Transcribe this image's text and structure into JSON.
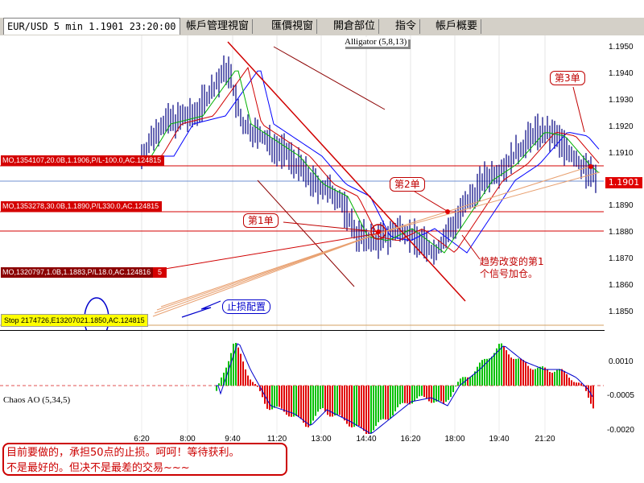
{
  "tabs": [
    {
      "label": "EUR/USD 5 min 1.1901 23:20:00",
      "active": true
    },
    {
      "label": "帳戶管理視窗"
    },
    {
      "label": "匯價視窗"
    },
    {
      "label": "開倉部位"
    },
    {
      "label": "指令"
    },
    {
      "label": "帳戶概要"
    }
  ],
  "price_chart": {
    "indicator": "Alligator (5,8,13)",
    "current_price": "1.1901",
    "price_ticks": [
      "1.1950",
      "1.1940",
      "1.1930",
      "1.1920",
      "1.1910",
      "1.1890",
      "1.1880",
      "1.1870",
      "1.1860",
      "1.1850"
    ],
    "orders": [
      {
        "label": "MO,1354107,20.0B,1.1906,P/L-100.0,AC.124815"
      },
      {
        "label": "MO,1353278,30.0B,1.1890,P/L330.0,AC.124815"
      },
      {
        "label": "MO,1320797,1.0B,1.1883,P/L18.0,AC.124816"
      }
    ],
    "order_tail": "5",
    "stop": {
      "prefix": "Stop 2174726,E1320702",
      "circled": "1.1850",
      "suffix": ",AC.124815"
    },
    "callouts": {
      "first": "第1单",
      "second": "第2单",
      "third": "第3单",
      "stop_config": "止损配置",
      "trend_line1": "趋势改变的第1",
      "trend_line2": "个信号加仓。"
    }
  },
  "oscillator": {
    "label": "Chaos AO (5,34,5)",
    "ticks": [
      "0.0010",
      "-0.0005",
      "-0.0020"
    ]
  },
  "time_axis": [
    "6:20",
    "8:00",
    "9:40",
    "11:20",
    "13:00",
    "14:40",
    "16:20",
    "18:00",
    "19:40",
    "21:20"
  ],
  "comment": {
    "line1": "目前要做的，承担50点的止损。呵呵！等待获利。",
    "line2": "不是最好的。但决不是最差的交易~~~"
  },
  "colors": {
    "accent_red": "#cc0000",
    "bars": "#000080",
    "ao_up": "#00c000",
    "ao_down": "#e00000",
    "jaw": "#0000ff",
    "teeth": "#d00000",
    "lips": "#00b000"
  }
}
